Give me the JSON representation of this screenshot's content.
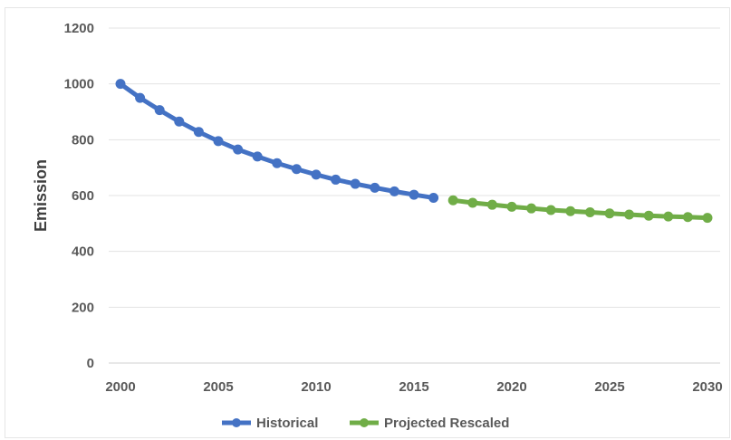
{
  "chart_data": {
    "type": "line",
    "title": "",
    "xlabel": "",
    "ylabel": "Emission",
    "xlim": [
      2000,
      2030
    ],
    "ylim": [
      0,
      1200
    ],
    "x_ticks": [
      2000,
      2005,
      2010,
      2015,
      2020,
      2025,
      2030
    ],
    "y_ticks": [
      0,
      200,
      400,
      600,
      800,
      1000,
      1200
    ],
    "grid": "horizontal",
    "legend_position": "bottom",
    "series": [
      {
        "name": "Historical",
        "color": "#4472C4",
        "x": [
          2000,
          2001,
          2002,
          2003,
          2004,
          2005,
          2006,
          2007,
          2008,
          2009,
          2010,
          2011,
          2012,
          2013,
          2014,
          2015,
          2016
        ],
        "y": [
          1000,
          950,
          906,
          865,
          828,
          795,
          765,
          740,
          716,
          695,
          675,
          657,
          642,
          628,
          615,
          603,
          592
        ]
      },
      {
        "name": "Projected Rescaled",
        "color": "#70AD47",
        "x": [
          2017,
          2018,
          2019,
          2020,
          2021,
          2022,
          2023,
          2024,
          2025,
          2026,
          2027,
          2028,
          2029,
          2030
        ],
        "y": [
          583,
          574,
          567,
          560,
          554,
          548,
          544,
          540,
          536,
          532,
          528,
          525,
          523,
          520
        ]
      }
    ]
  }
}
